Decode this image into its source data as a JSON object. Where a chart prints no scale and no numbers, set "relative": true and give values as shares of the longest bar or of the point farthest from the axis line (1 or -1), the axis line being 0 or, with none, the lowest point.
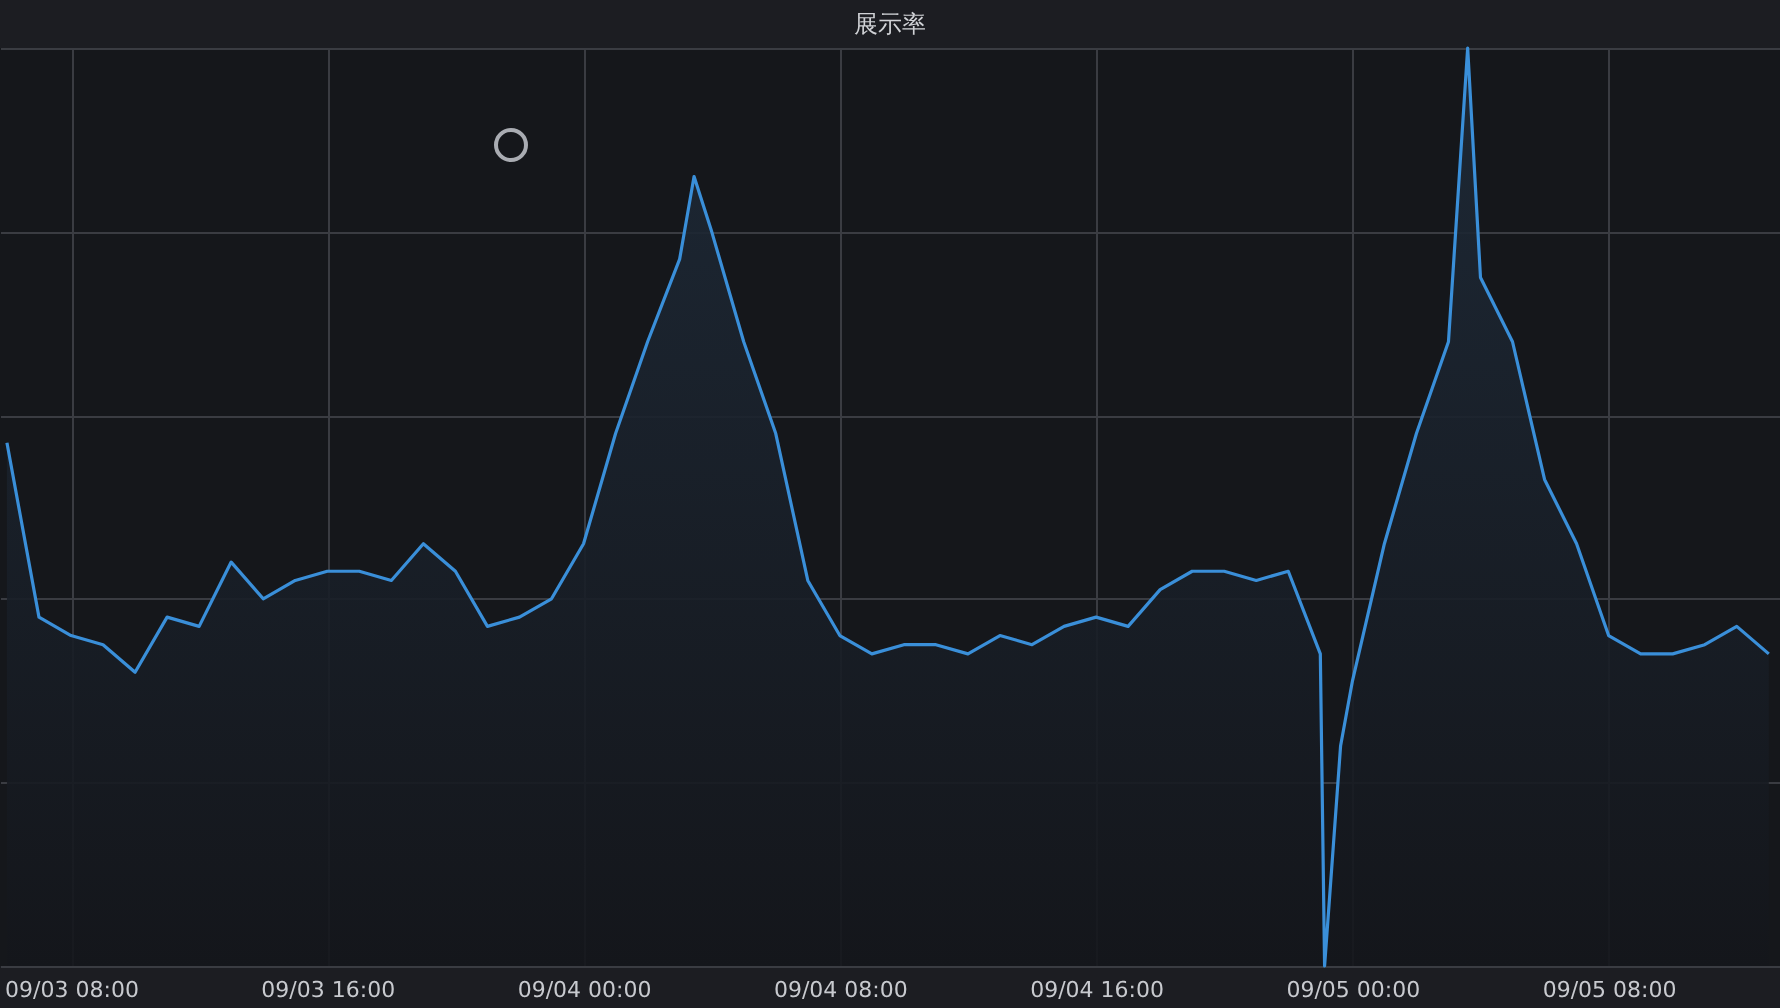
{
  "chart_data": {
    "type": "area",
    "title": "展示率",
    "relative": true,
    "grid": true,
    "x": [
      "--09-03T06:00",
      "--09-03T07:00",
      "--09-03T08:00",
      "--09-03T09:00",
      "--09-03T10:00",
      "--09-03T11:00",
      "--09-03T12:00",
      "--09-03T13:00",
      "--09-03T14:00",
      "--09-03T15:00",
      "--09-03T16:00",
      "--09-03T17:00",
      "--09-03T18:00",
      "--09-03T19:00",
      "--09-03T20:00",
      "--09-03T21:00",
      "--09-03T22:00",
      "--09-03T23:00",
      "--09-04T00:00",
      "--09-04T01:00",
      "--09-04T02:00",
      "--09-04T03:00",
      "--09-04T03:27",
      "--09-04T04:00",
      "--09-04T05:00",
      "--09-04T06:00",
      "--09-04T07:00",
      "--09-04T08:00",
      "--09-04T09:00",
      "--09-04T10:00",
      "--09-04T11:00",
      "--09-04T12:00",
      "--09-04T13:00",
      "--09-04T14:00",
      "--09-04T15:00",
      "--09-04T16:00",
      "--09-04T17:00",
      "--09-04T18:00",
      "--09-04T19:00",
      "--09-04T20:00",
      "--09-04T21:00",
      "--09-04T22:00",
      "--09-04T23:00",
      "--09-04T23:08",
      "--09-04T23:38",
      "--09-05T00:00",
      "--09-05T01:00",
      "--09-05T02:00",
      "--09-05T03:00",
      "--09-05T03:36",
      "--09-05T04:00",
      "--09-05T05:00",
      "--09-05T06:00",
      "--09-05T07:00",
      "--09-05T08:00",
      "--09-05T09:00",
      "--09-05T10:00",
      "--09-05T11:00",
      "--09-05T12:00",
      "--09-05T13:00"
    ],
    "series": [
      {
        "color": "#3a8fd9",
        "values": [
          0.57,
          0.38,
          0.36,
          0.35,
          0.32,
          0.38,
          0.37,
          0.44,
          0.4,
          0.42,
          0.43,
          0.43,
          0.42,
          0.46,
          0.43,
          0.37,
          0.38,
          0.4,
          0.46,
          0.58,
          0.68,
          0.77,
          0.86,
          0.8,
          0.68,
          0.58,
          0.42,
          0.36,
          0.34,
          0.35,
          0.35,
          0.34,
          0.36,
          0.35,
          0.37,
          0.38,
          0.37,
          0.41,
          0.43,
          0.43,
          0.42,
          0.43,
          0.34,
          0.0,
          0.24,
          0.31,
          0.46,
          0.58,
          0.68,
          1.0,
          0.75,
          0.68,
          0.53,
          0.46,
          0.36,
          0.34,
          0.34,
          0.35,
          0.37,
          0.34
        ]
      }
    ],
    "xlim": [
      "--09-03T05:47",
      "--09-05T13:21"
    ],
    "xticks": [
      {
        "value": "--09-03T08:00",
        "label": "09/03 08:00"
      },
      {
        "value": "--09-03T16:00",
        "label": "09/03 16:00"
      },
      {
        "value": "--09-04T00:00",
        "label": "09/04 00:00"
      },
      {
        "value": "--09-04T08:00",
        "label": "09/04 08:00"
      },
      {
        "value": "--09-04T16:00",
        "label": "09/04 16:00"
      },
      {
        "value": "--09-05T00:00",
        "label": "09/05 00:00"
      },
      {
        "value": "--09-05T08:00",
        "label": "09/05 08:00"
      }
    ]
  }
}
